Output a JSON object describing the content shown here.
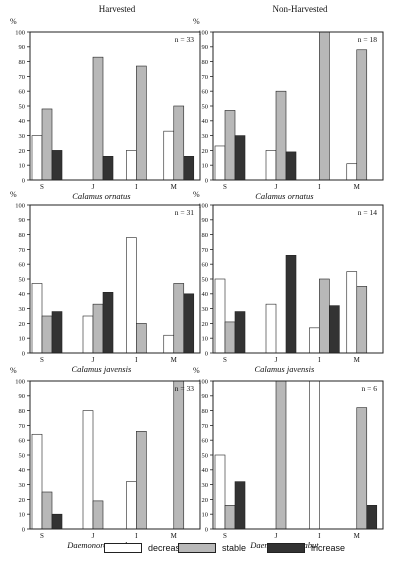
{
  "columns": [
    "Harvested",
    "Non-Harvested"
  ],
  "legend": [
    {
      "label": "decrease",
      "color": "#ffffff"
    },
    {
      "label": "stable",
      "color": "#b8b8b8"
    },
    {
      "label": "increase",
      "color": "#333333"
    }
  ],
  "chart_data": [
    {
      "type": "bar",
      "column": "Harvested",
      "species": "Calamus ornatus",
      "n_label": "n = 33",
      "ylabel": "%",
      "ylim": [
        0,
        100
      ],
      "yticks": [
        0,
        10,
        20,
        30,
        40,
        50,
        60,
        70,
        80,
        90,
        100
      ],
      "categories": [
        "S",
        "J",
        "I",
        "M"
      ],
      "series": [
        {
          "name": "decrease",
          "values": [
            30,
            0,
            20,
            33
          ]
        },
        {
          "name": "stable",
          "values": [
            48,
            83,
            77,
            50
          ]
        },
        {
          "name": "increase",
          "values": [
            20,
            16,
            0,
            16
          ]
        }
      ]
    },
    {
      "type": "bar",
      "column": "Non-Harvested",
      "species": "Calamus ornatus",
      "n_label": "n = 18",
      "ylabel": "%",
      "ylim": [
        0,
        100
      ],
      "yticks": [
        0,
        10,
        20,
        30,
        40,
        50,
        60,
        70,
        80,
        90,
        100
      ],
      "categories": [
        "S",
        "J",
        "I",
        "M"
      ],
      "series": [
        {
          "name": "decrease",
          "values": [
            23,
            20,
            0,
            11
          ]
        },
        {
          "name": "stable",
          "values": [
            47,
            60,
            100,
            88
          ]
        },
        {
          "name": "increase",
          "values": [
            30,
            19,
            0,
            0
          ]
        }
      ]
    },
    {
      "type": "bar",
      "column": "Harvested",
      "species": "Calamus javensis",
      "n_label": "n = 31",
      "ylabel": "%",
      "ylim": [
        0,
        100
      ],
      "yticks": [
        0,
        10,
        20,
        30,
        40,
        50,
        60,
        70,
        80,
        90,
        100
      ],
      "categories": [
        "S",
        "J",
        "I",
        "M"
      ],
      "series": [
        {
          "name": "decrease",
          "values": [
            47,
            25,
            78,
            12
          ]
        },
        {
          "name": "stable",
          "values": [
            25,
            33,
            20,
            47
          ]
        },
        {
          "name": "increase",
          "values": [
            28,
            41,
            0,
            40
          ]
        }
      ]
    },
    {
      "type": "bar",
      "column": "Non-Harvested",
      "species": "Calamus javensis",
      "n_label": "n = 14",
      "ylabel": "%",
      "ylim": [
        0,
        100
      ],
      "yticks": [
        0,
        10,
        20,
        30,
        40,
        50,
        60,
        70,
        80,
        90,
        100
      ],
      "categories": [
        "S",
        "J",
        "I",
        "M"
      ],
      "series": [
        {
          "name": "decrease",
          "values": [
            50,
            33,
            17,
            55
          ]
        },
        {
          "name": "stable",
          "values": [
            21,
            0,
            50,
            45
          ]
        },
        {
          "name": "increase",
          "values": [
            28,
            66,
            32,
            0
          ]
        }
      ]
    },
    {
      "type": "bar",
      "column": "Harvested",
      "species": "Daemonorops sabut",
      "n_label": "n = 33",
      "ylabel": "%",
      "ylim": [
        0,
        100
      ],
      "yticks": [
        0,
        10,
        20,
        30,
        40,
        50,
        60,
        70,
        80,
        90,
        100
      ],
      "categories": [
        "S",
        "J",
        "I",
        "M"
      ],
      "series": [
        {
          "name": "decrease",
          "values": [
            64,
            80,
            32,
            0
          ]
        },
        {
          "name": "stable",
          "values": [
            25,
            19,
            66,
            100
          ]
        },
        {
          "name": "increase",
          "values": [
            10,
            0,
            0,
            0
          ]
        }
      ]
    },
    {
      "type": "bar",
      "column": "Non-Harvested",
      "species": "Daemonorops sabut",
      "n_label": "n = 6",
      "ylabel": "%",
      "ylim": [
        0,
        100
      ],
      "yticks": [
        0,
        10,
        20,
        30,
        40,
        50,
        60,
        70,
        80,
        90,
        100
      ],
      "categories": [
        "S",
        "J",
        "I",
        "M"
      ],
      "series": [
        {
          "name": "decrease",
          "values": [
            50,
            0,
            100,
            0
          ]
        },
        {
          "name": "stable",
          "values": [
            16,
            100,
            0,
            82
          ]
        },
        {
          "name": "increase",
          "values": [
            32,
            0,
            0,
            16
          ]
        }
      ]
    }
  ]
}
